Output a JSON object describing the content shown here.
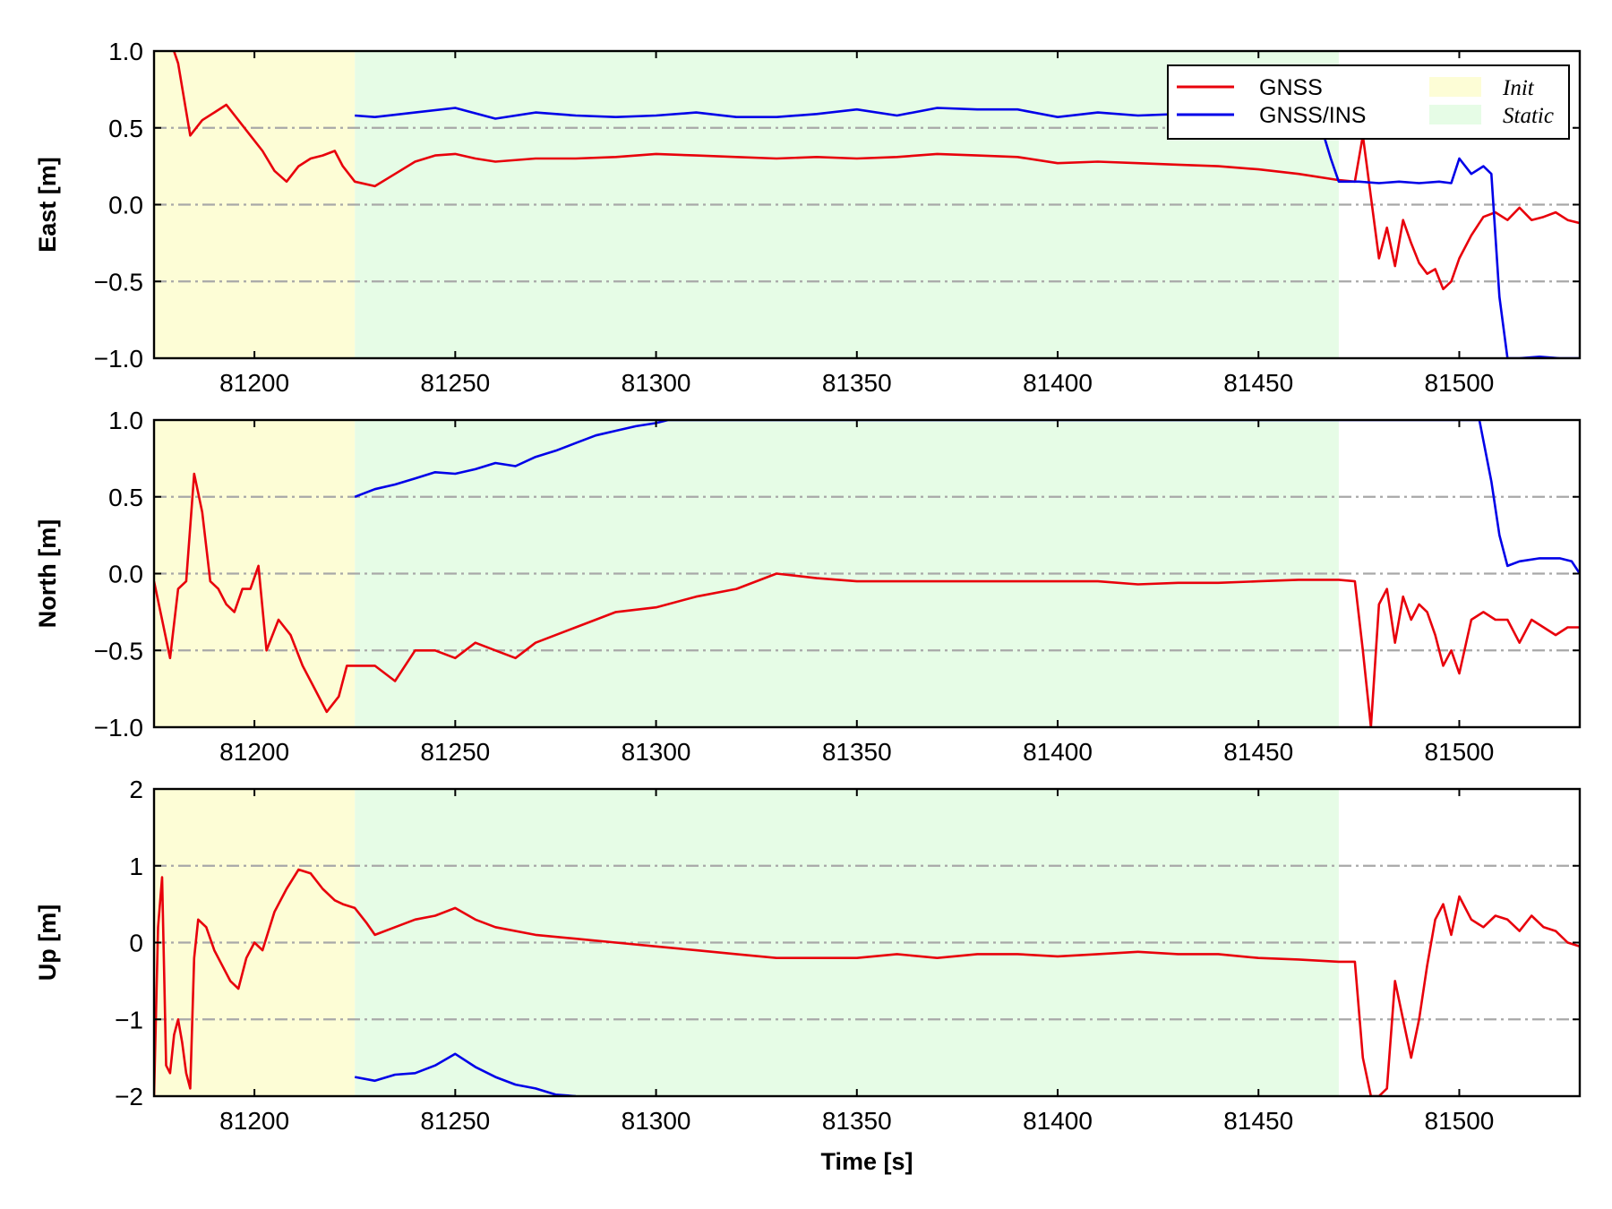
{
  "chart_data": [
    {
      "type": "line",
      "id": "east",
      "ylabel": "East [m]",
      "xlabel": "",
      "xlim": [
        81175,
        81530
      ],
      "ylim": [
        -1.0,
        1.0
      ],
      "xticks": [
        81200,
        81250,
        81300,
        81350,
        81400,
        81450,
        81500
      ],
      "xtick_labels": [
        "81200",
        "81250",
        "81300",
        "81350",
        "81400",
        "81450",
        "81500"
      ],
      "yticks": [
        -1.0,
        -0.5,
        0.0,
        0.5,
        1.0
      ],
      "ytick_labels": [
        "−1.0",
        "−0.5",
        "0.0",
        "0.5",
        "1.0"
      ],
      "grid": "y-dashdot",
      "shaded_regions": [
        {
          "name": "Init",
          "x": [
            81175,
            81225
          ],
          "color": "#fdfdd6"
        },
        {
          "name": "Static",
          "x": [
            81225,
            81470
          ],
          "color": "#e6fce6"
        }
      ],
      "series": [
        {
          "name": "GNSS",
          "color": "#e8000b",
          "x": [
            81175,
            81178,
            81181,
            81184,
            81187,
            81190,
            81193,
            81196,
            81199,
            81202,
            81205,
            81208,
            81211,
            81214,
            81217,
            81220,
            81222,
            81225,
            81230,
            81235,
            81240,
            81245,
            81250,
            81255,
            81260,
            81270,
            81280,
            81290,
            81300,
            81310,
            81320,
            81330,
            81340,
            81350,
            81360,
            81370,
            81380,
            81390,
            81400,
            81410,
            81420,
            81430,
            81440,
            81450,
            81460,
            81470,
            81474,
            81476,
            81478,
            81480,
            81482,
            81484,
            81486,
            81488,
            81490,
            81492,
            81494,
            81496,
            81498,
            81500,
            81503,
            81506,
            81509,
            81512,
            81515,
            81518,
            81521,
            81524,
            81527,
            81530
          ],
          "y": [
            1.3,
            1.15,
            0.92,
            0.45,
            0.55,
            0.6,
            0.65,
            0.55,
            0.45,
            0.35,
            0.22,
            0.15,
            0.25,
            0.3,
            0.32,
            0.35,
            0.25,
            0.15,
            0.12,
            0.2,
            0.28,
            0.32,
            0.33,
            0.3,
            0.28,
            0.3,
            0.3,
            0.31,
            0.33,
            0.32,
            0.31,
            0.3,
            0.31,
            0.3,
            0.31,
            0.33,
            0.32,
            0.31,
            0.27,
            0.28,
            0.27,
            0.26,
            0.25,
            0.23,
            0.2,
            0.16,
            0.15,
            0.45,
            0.05,
            -0.35,
            -0.15,
            -0.4,
            -0.1,
            -0.25,
            -0.38,
            -0.45,
            -0.42,
            -0.55,
            -0.5,
            -0.35,
            -0.2,
            -0.08,
            -0.05,
            -0.1,
            -0.02,
            -0.1,
            -0.08,
            -0.05,
            -0.1,
            -0.12
          ]
        },
        {
          "name": "GNSS/INS",
          "color": "#0000e8",
          "x": [
            81225,
            81230,
            81240,
            81250,
            81260,
            81270,
            81280,
            81290,
            81300,
            81310,
            81320,
            81330,
            81340,
            81350,
            81360,
            81370,
            81380,
            81390,
            81400,
            81410,
            81420,
            81430,
            81440,
            81450,
            81460,
            81465,
            81468,
            81470,
            81475,
            81480,
            81485,
            81490,
            81495,
            81498,
            81500,
            81503,
            81506,
            81508,
            81510,
            81512,
            81515,
            81520,
            81525,
            81530
          ],
          "y": [
            0.58,
            0.57,
            0.6,
            0.63,
            0.56,
            0.6,
            0.58,
            0.57,
            0.58,
            0.6,
            0.57,
            0.57,
            0.59,
            0.62,
            0.58,
            0.63,
            0.62,
            0.62,
            0.57,
            0.6,
            0.58,
            0.59,
            0.58,
            0.6,
            0.58,
            0.56,
            0.3,
            0.15,
            0.15,
            0.14,
            0.15,
            0.14,
            0.15,
            0.14,
            0.3,
            0.2,
            0.25,
            0.2,
            -0.6,
            -1.0,
            -1.0,
            -0.99,
            -1.0,
            -1.0
          ]
        }
      ],
      "legend": {
        "placement": "top-right",
        "entries": [
          {
            "label": "GNSS",
            "type": "line",
            "color": "#e8000b"
          },
          {
            "label": "GNSS/INS",
            "type": "line",
            "color": "#0000e8"
          },
          {
            "label": "Init",
            "type": "patch",
            "color": "#fdfdd6"
          },
          {
            "label": "Static",
            "type": "patch",
            "color": "#e6fce6"
          }
        ]
      }
    },
    {
      "type": "line",
      "id": "north",
      "ylabel": "North [m]",
      "xlabel": "",
      "xlim": [
        81175,
        81530
      ],
      "ylim": [
        -1.0,
        1.0
      ],
      "xticks": [
        81200,
        81250,
        81300,
        81350,
        81400,
        81450,
        81500
      ],
      "xtick_labels": [
        "81200",
        "81250",
        "81300",
        "81350",
        "81400",
        "81450",
        "81500"
      ],
      "yticks": [
        -1.0,
        -0.5,
        0.0,
        0.5,
        1.0
      ],
      "ytick_labels": [
        "−1.0",
        "−0.5",
        "0.0",
        "0.5",
        "1.0"
      ],
      "grid": "y-dashdot",
      "shaded_regions": [
        {
          "name": "Init",
          "x": [
            81175,
            81225
          ],
          "color": "#fdfdd6"
        },
        {
          "name": "Static",
          "x": [
            81225,
            81470
          ],
          "color": "#e6fce6"
        }
      ],
      "series": [
        {
          "name": "GNSS",
          "color": "#e8000b",
          "x": [
            81175,
            81177,
            81179,
            81181,
            81183,
            81185,
            81187,
            81189,
            81191,
            81193,
            81195,
            81197,
            81199,
            81201,
            81203,
            81206,
            81209,
            81212,
            81215,
            81218,
            81221,
            81223,
            81225,
            81230,
            81235,
            81240,
            81245,
            81250,
            81255,
            81260,
            81265,
            81270,
            81280,
            81290,
            81300,
            81310,
            81320,
            81330,
            81340,
            81350,
            81360,
            81370,
            81380,
            81390,
            81400,
            81410,
            81420,
            81430,
            81440,
            81450,
            81460,
            81470,
            81474,
            81476,
            81478,
            81480,
            81482,
            81484,
            81486,
            81488,
            81490,
            81492,
            81494,
            81496,
            81498,
            81500,
            81503,
            81506,
            81509,
            81512,
            81515,
            81518,
            81521,
            81524,
            81527,
            81530
          ],
          "y": [
            -0.05,
            -0.3,
            -0.55,
            -0.1,
            -0.05,
            0.65,
            0.4,
            -0.05,
            -0.1,
            -0.2,
            -0.25,
            -0.1,
            -0.1,
            0.05,
            -0.5,
            -0.3,
            -0.4,
            -0.6,
            -0.75,
            -0.9,
            -0.8,
            -0.6,
            -0.6,
            -0.6,
            -0.7,
            -0.5,
            -0.5,
            -0.55,
            -0.45,
            -0.5,
            -0.55,
            -0.45,
            -0.35,
            -0.25,
            -0.22,
            -0.15,
            -0.1,
            0.0,
            -0.03,
            -0.05,
            -0.05,
            -0.05,
            -0.05,
            -0.05,
            -0.05,
            -0.05,
            -0.07,
            -0.06,
            -0.06,
            -0.05,
            -0.04,
            -0.04,
            -0.05,
            -0.5,
            -1.0,
            -0.2,
            -0.1,
            -0.45,
            -0.15,
            -0.3,
            -0.2,
            -0.25,
            -0.4,
            -0.6,
            -0.5,
            -0.65,
            -0.3,
            -0.25,
            -0.3,
            -0.3,
            -0.45,
            -0.3,
            -0.35,
            -0.4,
            -0.35,
            -0.35
          ]
        },
        {
          "name": "GNSS/INS",
          "color": "#0000e8",
          "x": [
            81225,
            81230,
            81235,
            81240,
            81245,
            81250,
            81255,
            81260,
            81265,
            81270,
            81275,
            81280,
            81285,
            81290,
            81295,
            81300,
            81303,
            81505,
            81508,
            81510,
            81512,
            81515,
            81520,
            81525,
            81528,
            81530
          ],
          "y": [
            0.5,
            0.55,
            0.58,
            0.62,
            0.66,
            0.65,
            0.68,
            0.72,
            0.7,
            0.76,
            0.8,
            0.85,
            0.9,
            0.93,
            0.96,
            0.98,
            1.0,
            1.0,
            0.6,
            0.25,
            0.05,
            0.08,
            0.1,
            0.1,
            0.08,
            0.0
          ]
        }
      ],
      "legend": null
    },
    {
      "type": "line",
      "id": "up",
      "ylabel": "Up [m]",
      "xlabel": "Time [s]",
      "xlim": [
        81175,
        81530
      ],
      "ylim": [
        -2,
        2
      ],
      "xticks": [
        81200,
        81250,
        81300,
        81350,
        81400,
        81450,
        81500
      ],
      "xtick_labels": [
        "81200",
        "81250",
        "81300",
        "81350",
        "81400",
        "81450",
        "81500"
      ],
      "yticks": [
        -2,
        -1,
        0,
        1,
        2
      ],
      "ytick_labels": [
        "−2",
        "−1",
        "0",
        "1",
        "2"
      ],
      "grid": "y-dashdot",
      "shaded_regions": [
        {
          "name": "Init",
          "x": [
            81175,
            81225
          ],
          "color": "#fdfdd6"
        },
        {
          "name": "Static",
          "x": [
            81225,
            81470
          ],
          "color": "#e6fce6"
        }
      ],
      "series": [
        {
          "name": "GNSS",
          "color": "#e8000b",
          "x": [
            81175,
            81176,
            81177,
            81178,
            81179,
            81180,
            81181,
            81182,
            81183,
            81184,
            81185,
            81186,
            81188,
            81190,
            81192,
            81194,
            81196,
            81198,
            81200,
            81202,
            81205,
            81208,
            81211,
            81214,
            81217,
            81220,
            81222,
            81225,
            81228,
            81230,
            81235,
            81240,
            81245,
            81250,
            81255,
            81260,
            81270,
            81280,
            81290,
            81300,
            81310,
            81320,
            81330,
            81340,
            81350,
            81360,
            81370,
            81380,
            81390,
            81400,
            81410,
            81420,
            81430,
            81440,
            81450,
            81460,
            81470,
            81474,
            81476,
            81478,
            81480,
            81482,
            81484,
            81486,
            81488,
            81490,
            81492,
            81494,
            81496,
            81498,
            81500,
            81503,
            81506,
            81509,
            81512,
            81515,
            81518,
            81521,
            81524,
            81527,
            81530
          ],
          "y": [
            -2.0,
            0.2,
            0.85,
            -1.6,
            -1.7,
            -1.2,
            -1.0,
            -1.3,
            -1.7,
            -1.9,
            -0.2,
            0.3,
            0.2,
            -0.1,
            -0.3,
            -0.5,
            -0.6,
            -0.2,
            0.0,
            -0.1,
            0.4,
            0.7,
            0.95,
            0.9,
            0.7,
            0.55,
            0.5,
            0.45,
            0.25,
            0.1,
            0.2,
            0.3,
            0.35,
            0.45,
            0.3,
            0.2,
            0.1,
            0.05,
            0.0,
            -0.05,
            -0.1,
            -0.15,
            -0.2,
            -0.2,
            -0.2,
            -0.15,
            -0.2,
            -0.15,
            -0.15,
            -0.18,
            -0.15,
            -0.12,
            -0.15,
            -0.15,
            -0.2,
            -0.22,
            -0.25,
            -0.25,
            -1.5,
            -2.0,
            -2.0,
            -1.9,
            -0.5,
            -1.0,
            -1.5,
            -1.0,
            -0.3,
            0.3,
            0.5,
            0.1,
            0.6,
            0.3,
            0.2,
            0.35,
            0.3,
            0.15,
            0.35,
            0.2,
            0.15,
            0.0,
            -0.05
          ]
        },
        {
          "name": "GNSS/INS",
          "color": "#0000e8",
          "x": [
            81225,
            81230,
            81235,
            81240,
            81245,
            81250,
            81255,
            81260,
            81265,
            81270,
            81275,
            81280
          ],
          "y": [
            -1.75,
            -1.8,
            -1.72,
            -1.7,
            -1.6,
            -1.45,
            -1.62,
            -1.75,
            -1.85,
            -1.9,
            -1.98,
            -2.0
          ]
        }
      ],
      "legend": null
    }
  ]
}
